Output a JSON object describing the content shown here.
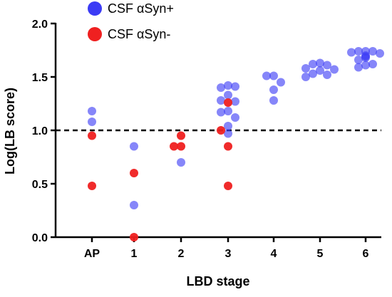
{
  "chart_data": {
    "type": "scatter",
    "xlabel": "LBD stage",
    "ylabel": "Log(LB score)",
    "categories": [
      "AP",
      "1",
      "2",
      "3",
      "4",
      "5",
      "6"
    ],
    "ylim": [
      0,
      2.0
    ],
    "yticks": [
      "0.0",
      "0.5",
      "1.0",
      "1.5",
      "2.0"
    ],
    "reference_line": {
      "y": 1.0,
      "style": "dashed"
    },
    "legend": {
      "placement": "top-left"
    },
    "series": [
      {
        "name": "CSF αSyn+",
        "color": "#3b3bf5",
        "points": [
          {
            "x": "AP",
            "y": 1.18
          },
          {
            "x": "AP",
            "y": 1.08
          },
          {
            "x": "1",
            "y": 0.85
          },
          {
            "x": "1",
            "y": 0.3
          },
          {
            "x": "2",
            "y": 0.7
          },
          {
            "x": "3",
            "y": 1.42
          },
          {
            "x": "3",
            "y": 1.4
          },
          {
            "x": "3",
            "y": 1.41
          },
          {
            "x": "3",
            "y": 1.33
          },
          {
            "x": "3",
            "y": 1.28
          },
          {
            "x": "3",
            "y": 1.27
          },
          {
            "x": "3",
            "y": 1.18
          },
          {
            "x": "3",
            "y": 1.17
          },
          {
            "x": "3",
            "y": 1.12
          },
          {
            "x": "3",
            "y": 1.04
          },
          {
            "x": "3",
            "y": 0.97
          },
          {
            "x": "4",
            "y": 1.51
          },
          {
            "x": "4",
            "y": 1.51
          },
          {
            "x": "4",
            "y": 1.45
          },
          {
            "x": "4",
            "y": 1.38
          },
          {
            "x": "4",
            "y": 1.28
          },
          {
            "x": "5",
            "y": 1.63
          },
          {
            "x": "5",
            "y": 1.62
          },
          {
            "x": "5",
            "y": 1.61
          },
          {
            "x": "5",
            "y": 1.58
          },
          {
            "x": "5",
            "y": 1.57
          },
          {
            "x": "5",
            "y": 1.56
          },
          {
            "x": "5",
            "y": 1.53
          },
          {
            "x": "5",
            "y": 1.52
          },
          {
            "x": "5",
            "y": 1.5
          },
          {
            "x": "6",
            "y": 1.74
          },
          {
            "x": "6",
            "y": 1.74
          },
          {
            "x": "6",
            "y": 1.74
          },
          {
            "x": "6",
            "y": 1.73
          },
          {
            "x": "6",
            "y": 1.72
          },
          {
            "x": "6",
            "y": 1.7
          },
          {
            "x": "6",
            "y": 1.69
          },
          {
            "x": "6",
            "y": 1.68
          },
          {
            "x": "6",
            "y": 1.66
          },
          {
            "x": "6",
            "y": 1.62
          },
          {
            "x": "6",
            "y": 1.61
          },
          {
            "x": "6",
            "y": 1.59
          }
        ]
      },
      {
        "name": "CSF αSyn-",
        "color": "#ef2020",
        "points": [
          {
            "x": "AP",
            "y": 0.95
          },
          {
            "x": "AP",
            "y": 0.48
          },
          {
            "x": "1",
            "y": 0.6
          },
          {
            "x": "1",
            "y": 0.0
          },
          {
            "x": "2",
            "y": 0.95
          },
          {
            "x": "2",
            "y": 0.85
          },
          {
            "x": "2",
            "y": 0.85
          },
          {
            "x": "3",
            "y": 1.26
          },
          {
            "x": "3",
            "y": 1.0
          },
          {
            "x": "3",
            "y": 0.85
          },
          {
            "x": "3",
            "y": 0.48
          }
        ]
      }
    ]
  }
}
